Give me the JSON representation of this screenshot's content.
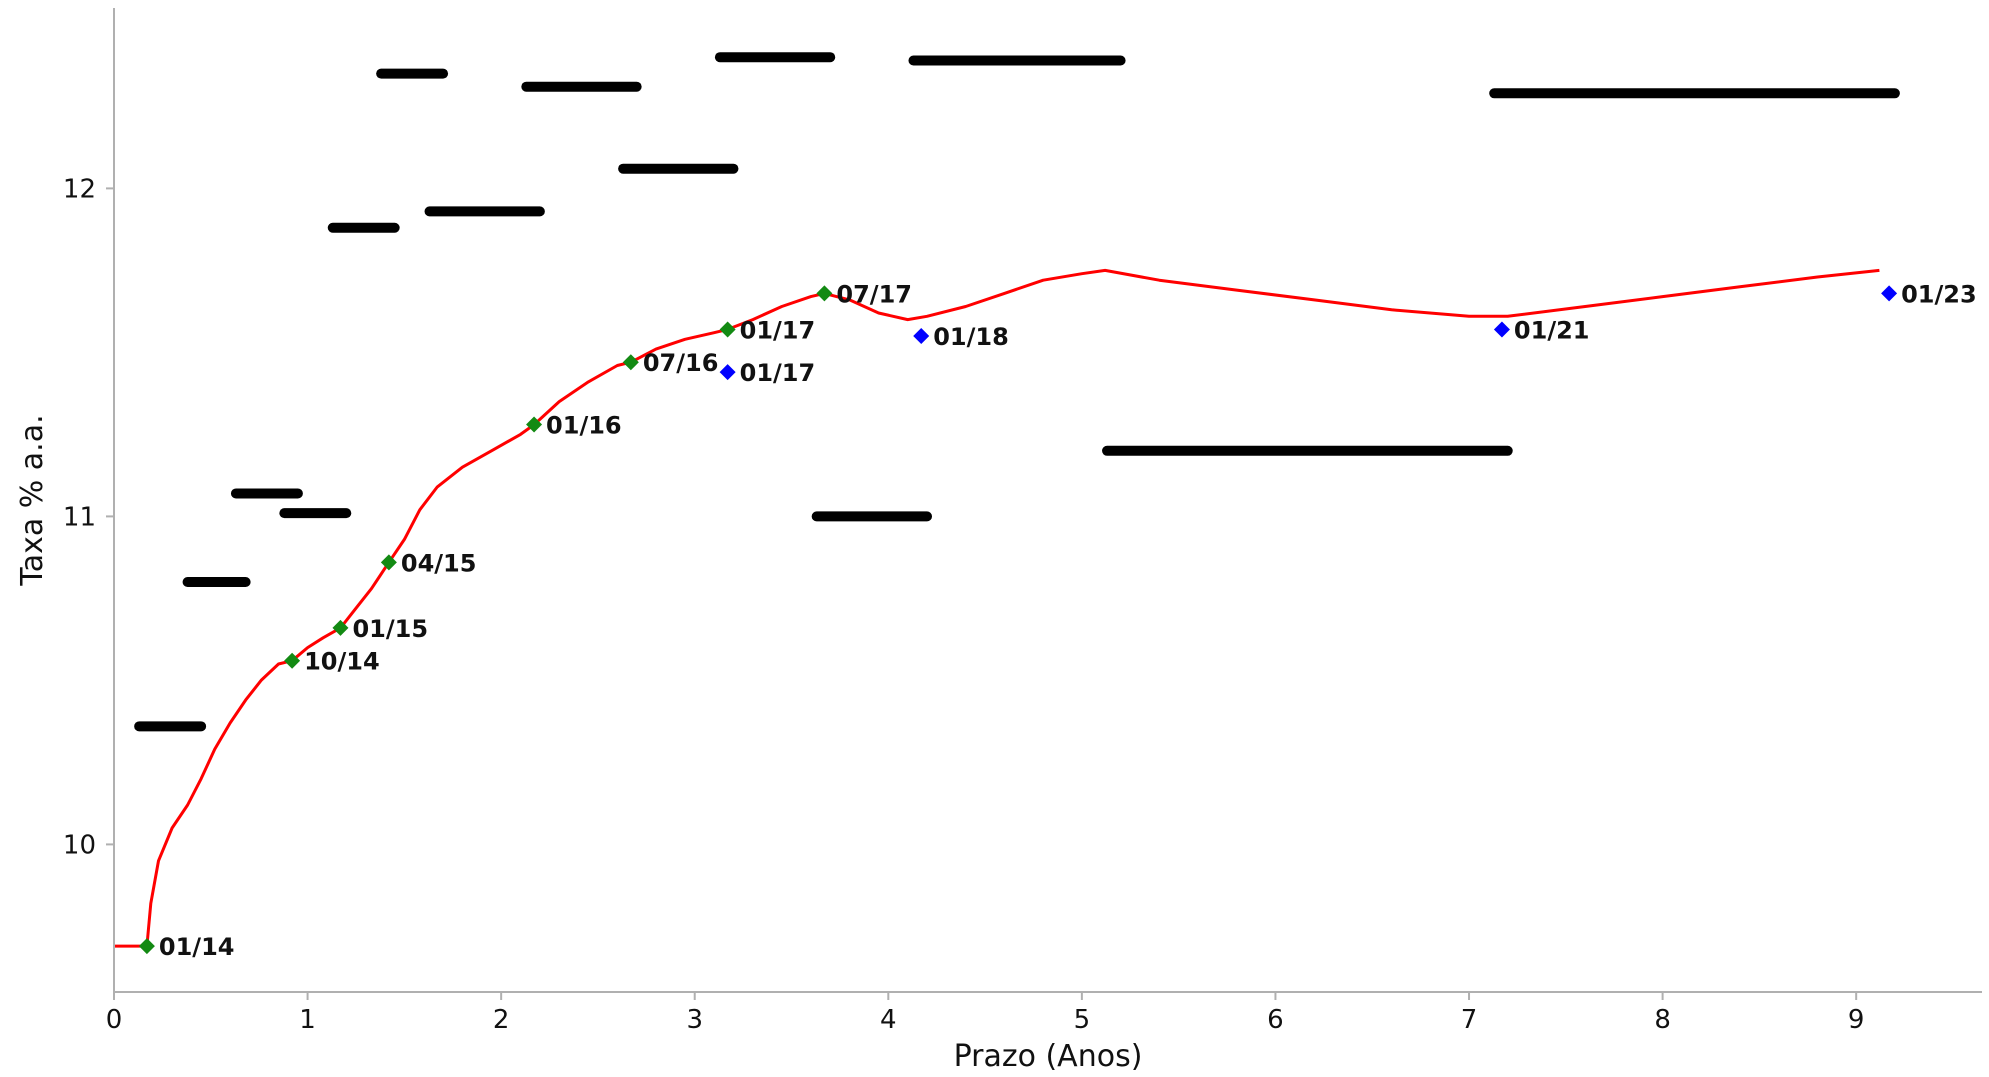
{
  "chart_data": {
    "type": "line",
    "title": "",
    "xlabel": "Prazo (Anos)",
    "ylabel": "Taxa % a.a.",
    "xlim": [
      0,
      9.65
    ],
    "ylim": [
      9.55,
      12.55
    ],
    "xticks": [
      0,
      1,
      2,
      3,
      4,
      5,
      6,
      7,
      8,
      9
    ],
    "yticks": [
      10,
      11,
      12
    ],
    "grid": false,
    "colors": {
      "curve": "#ff0000",
      "green_points": "#138a13",
      "blue_points": "#0000ff",
      "segments": "#000000",
      "axis": "#b0b0b0"
    },
    "series": [
      {
        "type": "line",
        "points": [
          [
            0.0,
            9.69
          ],
          [
            0.17,
            9.69
          ],
          [
            0.19,
            9.82
          ],
          [
            0.23,
            9.95
          ],
          [
            0.3,
            10.05
          ],
          [
            0.38,
            10.12
          ],
          [
            0.45,
            10.2
          ],
          [
            0.52,
            10.29
          ],
          [
            0.6,
            10.37
          ],
          [
            0.68,
            10.44
          ],
          [
            0.76,
            10.5
          ],
          [
            0.85,
            10.55
          ],
          [
            0.92,
            10.56
          ],
          [
            1.0,
            10.6
          ],
          [
            1.08,
            10.63
          ],
          [
            1.17,
            10.66
          ],
          [
            1.25,
            10.72
          ],
          [
            1.33,
            10.78
          ],
          [
            1.42,
            10.86
          ],
          [
            1.5,
            10.93
          ],
          [
            1.58,
            11.02
          ],
          [
            1.67,
            11.09
          ],
          [
            1.8,
            11.15
          ],
          [
            1.95,
            11.2
          ],
          [
            2.1,
            11.25
          ],
          [
            2.17,
            11.28
          ],
          [
            2.3,
            11.35
          ],
          [
            2.45,
            11.41
          ],
          [
            2.6,
            11.46
          ],
          [
            2.67,
            11.47
          ],
          [
            2.8,
            11.51
          ],
          [
            2.95,
            11.54
          ],
          [
            3.1,
            11.56
          ],
          [
            3.17,
            11.57
          ],
          [
            3.3,
            11.6
          ],
          [
            3.45,
            11.64
          ],
          [
            3.6,
            11.67
          ],
          [
            3.67,
            11.68
          ],
          [
            3.8,
            11.66
          ],
          [
            3.95,
            11.62
          ],
          [
            4.1,
            11.6
          ],
          [
            4.2,
            11.61
          ],
          [
            4.4,
            11.64
          ],
          [
            4.6,
            11.68
          ],
          [
            4.8,
            11.72
          ],
          [
            5.0,
            11.74
          ],
          [
            5.12,
            11.75
          ],
          [
            5.4,
            11.72
          ],
          [
            5.8,
            11.69
          ],
          [
            6.2,
            11.66
          ],
          [
            6.6,
            11.63
          ],
          [
            7.0,
            11.61
          ],
          [
            7.2,
            11.61
          ],
          [
            7.6,
            11.64
          ],
          [
            8.0,
            11.67
          ],
          [
            8.4,
            11.7
          ],
          [
            8.8,
            11.73
          ],
          [
            9.12,
            11.75
          ]
        ]
      },
      {
        "type": "scatter",
        "points": [
          {
            "x": 0.17,
            "y": 9.69,
            "label": "01/14"
          },
          {
            "x": 0.92,
            "y": 10.56,
            "label": "10/14"
          },
          {
            "x": 1.17,
            "y": 10.66,
            "label": "01/15"
          },
          {
            "x": 1.42,
            "y": 10.86,
            "label": "04/15"
          },
          {
            "x": 2.17,
            "y": 11.28,
            "label": "01/16"
          },
          {
            "x": 2.67,
            "y": 11.47,
            "label": "07/16"
          },
          {
            "x": 3.17,
            "y": 11.57,
            "label": "01/17"
          },
          {
            "x": 3.67,
            "y": 11.68,
            "label": "07/17"
          }
        ]
      },
      {
        "type": "scatter",
        "points": [
          {
            "x": 3.17,
            "y": 11.44,
            "label": "01/17"
          },
          {
            "x": 4.17,
            "y": 11.55,
            "label": "01/18"
          },
          {
            "x": 7.17,
            "y": 11.57,
            "label": "01/21"
          },
          {
            "x": 9.17,
            "y": 11.68,
            "label": "01/23"
          }
        ]
      }
    ],
    "segments": [
      {
        "x0": 0.13,
        "x1": 0.45,
        "y": 10.36
      },
      {
        "x0": 0.38,
        "x1": 0.68,
        "y": 10.8
      },
      {
        "x0": 0.63,
        "x1": 0.95,
        "y": 11.07
      },
      {
        "x0": 0.88,
        "x1": 1.2,
        "y": 11.01
      },
      {
        "x0": 1.13,
        "x1": 1.45,
        "y": 11.88
      },
      {
        "x0": 1.38,
        "x1": 1.7,
        "y": 12.35
      },
      {
        "x0": 1.63,
        "x1": 2.2,
        "y": 11.93
      },
      {
        "x0": 2.13,
        "x1": 2.7,
        "y": 12.31
      },
      {
        "x0": 2.63,
        "x1": 3.2,
        "y": 12.06
      },
      {
        "x0": 3.13,
        "x1": 3.7,
        "y": 12.4
      },
      {
        "x0": 3.63,
        "x1": 4.2,
        "y": 11.0
      },
      {
        "x0": 4.13,
        "x1": 5.2,
        "y": 12.39
      },
      {
        "x0": 5.13,
        "x1": 7.2,
        "y": 11.2
      },
      {
        "x0": 7.13,
        "x1": 9.2,
        "y": 12.29
      }
    ]
  }
}
